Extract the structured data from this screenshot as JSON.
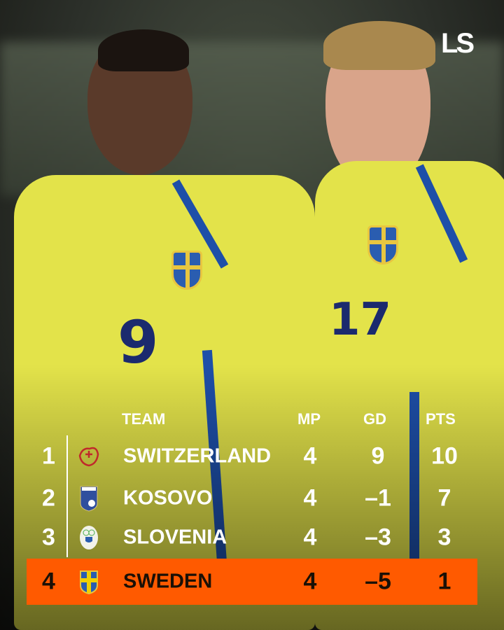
{
  "brand": {
    "logo_text": "LS"
  },
  "table": {
    "headers": {
      "team": "TEAM",
      "mp": "MP",
      "gd": "GD",
      "pts": "PTS"
    },
    "highlight_color": "#ff5a00",
    "rows": [
      {
        "rank": "1",
        "team": "SWITZERLAND",
        "mp": "4",
        "gd": "9",
        "pts": "10",
        "crest": "switzerland-crest"
      },
      {
        "rank": "2",
        "team": "KOSOVO",
        "mp": "4",
        "gd": "-1",
        "pts": "7",
        "crest": "kosovo-crest"
      },
      {
        "rank": "3",
        "team": "SLOVENIA",
        "mp": "4",
        "gd": "-3",
        "pts": "3",
        "crest": "slovenia-crest"
      },
      {
        "rank": "4",
        "team": "SWEDEN",
        "mp": "4",
        "gd": "-5",
        "pts": "1",
        "crest": "sweden-crest",
        "highlighted": true
      }
    ]
  },
  "players": [
    {
      "shirt_number": "9"
    },
    {
      "shirt_number": "17"
    }
  ]
}
